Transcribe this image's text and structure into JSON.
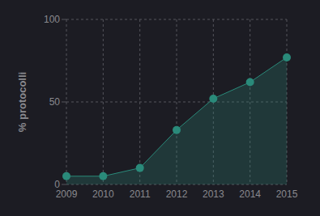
{
  "chart_data": {
    "type": "area",
    "y_label": "% protocolli",
    "x": [
      2009,
      2010,
      2011,
      2012,
      2013,
      2014,
      2015
    ],
    "values": [
      5,
      5,
      10,
      33,
      52,
      62,
      77
    ],
    "color": "#2a8a7a",
    "marker": "circle",
    "xlim": [
      2009,
      2015
    ],
    "xticks": [
      2009,
      2010,
      2011,
      2012,
      2013,
      2014,
      2015
    ],
    "ylim": [
      0,
      100
    ],
    "yticks": [
      0,
      50,
      100
    ],
    "grid": true
  }
}
